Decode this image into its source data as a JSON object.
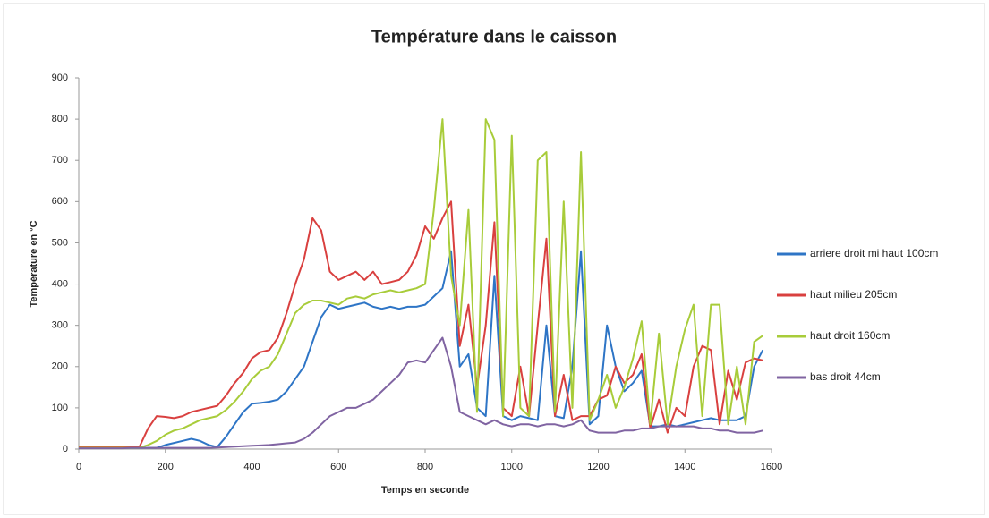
{
  "chart_data": {
    "type": "line",
    "title": "Température dans le caisson",
    "x_label": "Temps en seconde",
    "y_label": "Température en °C",
    "x": [
      0,
      20,
      40,
      60,
      80,
      100,
      120,
      140,
      160,
      180,
      200,
      220,
      240,
      260,
      280,
      300,
      320,
      340,
      360,
      380,
      400,
      420,
      440,
      460,
      480,
      500,
      520,
      540,
      560,
      580,
      600,
      620,
      640,
      660,
      680,
      700,
      720,
      740,
      760,
      780,
      800,
      820,
      840,
      860,
      880,
      900,
      920,
      940,
      960,
      980,
      1000,
      1020,
      1040,
      1060,
      1080,
      1100,
      1120,
      1140,
      1160,
      1180,
      1200,
      1220,
      1240,
      1260,
      1280,
      1300,
      1320,
      1340,
      1360,
      1380,
      1400,
      1420,
      1440,
      1460,
      1480,
      1500,
      1520,
      1540,
      1560,
      1580
    ],
    "series": [
      {
        "name": "arriere droit mi haut 100cm",
        "color": "#2e75c6",
        "values": [
          3,
          3,
          3,
          3,
          3,
          3,
          3,
          3,
          3,
          3,
          10,
          15,
          20,
          25,
          20,
          10,
          5,
          30,
          60,
          90,
          110,
          112,
          115,
          120,
          140,
          170,
          200,
          260,
          320,
          350,
          340,
          345,
          350,
          355,
          345,
          340,
          345,
          340,
          345,
          345,
          350,
          370,
          390,
          480,
          200,
          230,
          100,
          80,
          420,
          80,
          70,
          80,
          75,
          70,
          300,
          80,
          75,
          200,
          480,
          60,
          80,
          300,
          200,
          140,
          160,
          190,
          55,
          55,
          60,
          55,
          60,
          65,
          70,
          75,
          70,
          70,
          70,
          80,
          200,
          240
        ]
      },
      {
        "name": "haut milieu 205cm",
        "color": "#d9403f",
        "values": [
          5,
          5,
          5,
          5,
          5,
          5,
          5,
          5,
          50,
          80,
          78,
          75,
          80,
          90,
          95,
          100,
          105,
          130,
          160,
          185,
          220,
          235,
          240,
          270,
          330,
          400,
          460,
          560,
          530,
          430,
          410,
          420,
          430,
          410,
          430,
          400,
          405,
          410,
          430,
          470,
          540,
          510,
          560,
          600,
          250,
          350,
          150,
          300,
          550,
          100,
          80,
          200,
          80,
          300,
          510,
          80,
          180,
          70,
          80,
          80,
          120,
          130,
          200,
          160,
          180,
          230,
          50,
          120,
          40,
          100,
          80,
          200,
          250,
          240,
          60,
          190,
          120,
          210,
          220,
          215
        ]
      },
      {
        "name": "haut droit 160cm",
        "color": "#a8cc3a",
        "values": [
          3,
          3,
          3,
          3,
          3,
          3,
          3,
          3,
          10,
          20,
          35,
          45,
          50,
          60,
          70,
          75,
          80,
          95,
          115,
          140,
          170,
          190,
          200,
          230,
          280,
          330,
          350,
          360,
          360,
          355,
          350,
          365,
          370,
          365,
          375,
          380,
          385,
          380,
          385,
          390,
          400,
          580,
          800,
          420,
          300,
          580,
          90,
          800,
          750,
          80,
          760,
          100,
          80,
          700,
          720,
          90,
          600,
          100,
          720,
          70,
          120,
          180,
          100,
          150,
          220,
          310,
          60,
          280,
          60,
          200,
          290,
          350,
          80,
          350,
          350,
          60,
          200,
          60,
          260,
          275
        ]
      },
      {
        "name": "bas droit 44cm",
        "color": "#8064a2",
        "values": [
          2,
          2,
          2,
          2,
          2,
          2,
          3,
          3,
          3,
          3,
          3,
          3,
          3,
          3,
          3,
          3,
          4,
          5,
          6,
          7,
          8,
          9,
          10,
          12,
          14,
          16,
          25,
          40,
          60,
          80,
          90,
          100,
          100,
          110,
          120,
          140,
          160,
          180,
          210,
          215,
          210,
          240,
          270,
          200,
          90,
          80,
          70,
          60,
          70,
          60,
          55,
          60,
          60,
          55,
          60,
          60,
          55,
          60,
          70,
          45,
          40,
          40,
          40,
          45,
          45,
          50,
          50,
          55,
          55,
          55,
          55,
          55,
          50,
          50,
          45,
          45,
          40,
          40,
          40,
          45
        ]
      }
    ],
    "xlim": [
      0,
      1600
    ],
    "xticks": [
      0,
      200,
      400,
      600,
      800,
      1000,
      1200,
      1400,
      1600
    ],
    "ylim": [
      0,
      900
    ],
    "yticks": [
      0,
      100,
      200,
      300,
      400,
      500,
      600,
      700,
      800,
      900
    ],
    "legend": "right"
  }
}
